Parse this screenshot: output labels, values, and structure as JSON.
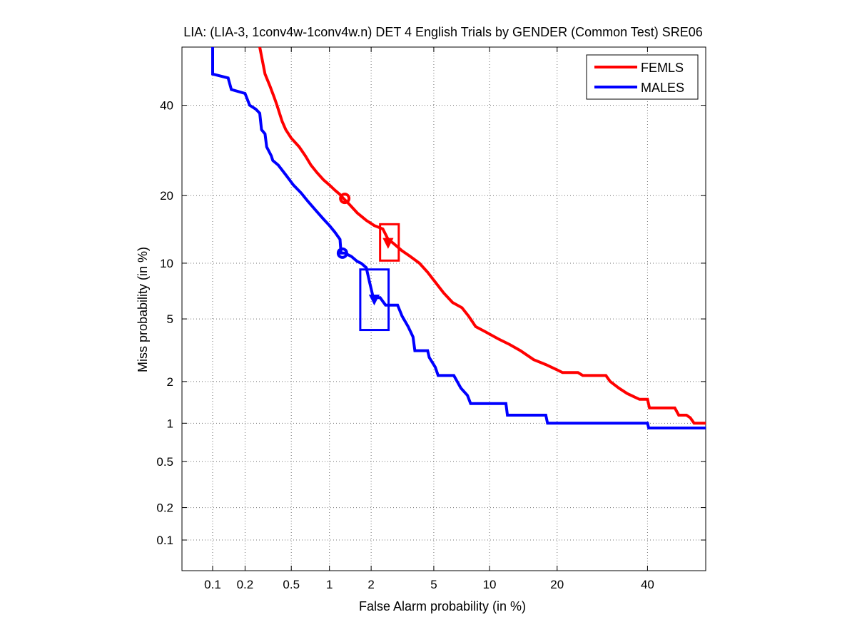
{
  "chart_data": {
    "type": "line",
    "title": "LIA: (LIA-3, 1conv4w-1conv4w.n) DET 4 English Trials by GENDER (Common Test) SRE06",
    "xlabel": "False Alarm probability (in %)",
    "ylabel": "Miss probability (in %)",
    "x_scale": "probit",
    "y_scale": "probit",
    "xlim": [
      0.05,
      55
    ],
    "ylim": [
      0.05,
      55
    ],
    "x_ticks": [
      0.1,
      0.2,
      0.5,
      1,
      2,
      5,
      10,
      20,
      40
    ],
    "x_tick_labels": [
      "0.1",
      "0.2",
      "0.5",
      "1",
      "2",
      "5",
      "10",
      "20",
      "40"
    ],
    "y_ticks": [
      0.1,
      0.2,
      0.5,
      1,
      2,
      5,
      10,
      20,
      40
    ],
    "y_tick_labels": [
      "0.1",
      "0.2",
      "0.5",
      "1",
      "2",
      "5",
      "10",
      "20",
      "40"
    ],
    "grid": true,
    "legend_position": "top-right",
    "series": [
      {
        "name": "FEMLS",
        "color": "#ff0000",
        "points": [
          [
            0.27,
            55
          ],
          [
            0.3,
            48
          ],
          [
            0.33,
            45
          ],
          [
            0.36,
            42
          ],
          [
            0.38,
            40
          ],
          [
            0.42,
            36
          ],
          [
            0.45,
            34
          ],
          [
            0.5,
            32
          ],
          [
            0.58,
            30
          ],
          [
            0.65,
            28
          ],
          [
            0.72,
            26
          ],
          [
            0.8,
            24.5
          ],
          [
            0.9,
            23
          ],
          [
            1.0,
            22
          ],
          [
            1.1,
            21
          ],
          [
            1.2,
            20.2
          ],
          [
            1.27,
            19.5
          ],
          [
            1.4,
            18.5
          ],
          [
            1.6,
            17
          ],
          [
            1.85,
            15.8
          ],
          [
            2.1,
            15
          ],
          [
            2.4,
            14.5
          ],
          [
            2.6,
            13
          ],
          [
            2.8,
            12.5
          ],
          [
            3.2,
            11.5
          ],
          [
            3.6,
            10.8
          ],
          [
            4.1,
            10
          ],
          [
            4.6,
            9
          ],
          [
            5.1,
            8
          ],
          [
            5.7,
            7
          ],
          [
            6.4,
            6.2
          ],
          [
            7.2,
            5.8
          ],
          [
            7.8,
            5.2
          ],
          [
            8.5,
            4.5
          ],
          [
            9.5,
            4.2
          ],
          [
            11,
            3.8
          ],
          [
            12.5,
            3.5
          ],
          [
            14,
            3.2
          ],
          [
            16,
            2.8
          ],
          [
            18,
            2.6
          ],
          [
            20,
            2.4
          ],
          [
            21,
            2.3
          ],
          [
            24,
            2.3
          ],
          [
            25,
            2.2
          ],
          [
            30,
            2.2
          ],
          [
            31,
            2.0
          ],
          [
            33,
            1.8
          ],
          [
            35,
            1.65
          ],
          [
            38,
            1.5
          ],
          [
            40,
            1.5
          ],
          [
            40.5,
            1.3
          ],
          [
            47,
            1.3
          ],
          [
            48,
            1.15
          ],
          [
            50,
            1.15
          ],
          [
            51,
            1.1
          ],
          [
            52,
            1.0
          ],
          [
            55,
            1.0
          ]
        ],
        "box": {
          "x": [
            2.3,
            3.05
          ],
          "y": [
            10.3,
            15.2
          ]
        },
        "markers": [
          {
            "x": 1.3,
            "y": 19.5
          },
          {
            "x": 2.6,
            "y": 12.6
          }
        ]
      },
      {
        "name": "MALES",
        "color": "#0000ff",
        "points": [
          [
            0.1,
            55
          ],
          [
            0.1,
            48
          ],
          [
            0.14,
            47
          ],
          [
            0.15,
            44
          ],
          [
            0.2,
            43
          ],
          [
            0.22,
            40
          ],
          [
            0.25,
            39
          ],
          [
            0.27,
            38
          ],
          [
            0.28,
            34
          ],
          [
            0.3,
            33
          ],
          [
            0.31,
            30
          ],
          [
            0.34,
            28
          ],
          [
            0.35,
            27
          ],
          [
            0.39,
            26
          ],
          [
            0.45,
            24
          ],
          [
            0.52,
            22
          ],
          [
            0.6,
            20.5
          ],
          [
            0.68,
            19
          ],
          [
            0.78,
            17.5
          ],
          [
            0.9,
            16
          ],
          [
            1.0,
            15
          ],
          [
            1.1,
            14
          ],
          [
            1.2,
            13
          ],
          [
            1.22,
            11.2
          ],
          [
            1.3,
            11.2
          ],
          [
            1.45,
            10.8
          ],
          [
            1.6,
            10.2
          ],
          [
            1.7,
            10
          ],
          [
            1.85,
            9.5
          ],
          [
            1.95,
            8
          ],
          [
            2.05,
            6.8
          ],
          [
            2.1,
            6.6
          ],
          [
            2.3,
            6.6
          ],
          [
            2.5,
            6
          ],
          [
            3.0,
            6
          ],
          [
            3.2,
            5.2
          ],
          [
            3.5,
            4.5
          ],
          [
            3.75,
            3.9
          ],
          [
            3.85,
            3.2
          ],
          [
            4.6,
            3.2
          ],
          [
            4.7,
            2.9
          ],
          [
            5.1,
            2.5
          ],
          [
            5.3,
            2.2
          ],
          [
            6.5,
            2.2
          ],
          [
            7.1,
            1.8
          ],
          [
            7.7,
            1.6
          ],
          [
            8,
            1.4
          ],
          [
            12,
            1.4
          ],
          [
            12.2,
            1.15
          ],
          [
            18,
            1.15
          ],
          [
            18.3,
            1.0
          ],
          [
            40,
            1.0
          ],
          [
            40.3,
            0.92
          ],
          [
            55,
            0.92
          ]
        ],
        "box": {
          "x": [
            1.68,
            2.62
          ],
          "y": [
            4.3,
            9.3
          ]
        },
        "markers": [
          {
            "x": 1.25,
            "y": 11.2
          },
          {
            "x": 2.1,
            "y": 6.5
          }
        ]
      }
    ]
  }
}
